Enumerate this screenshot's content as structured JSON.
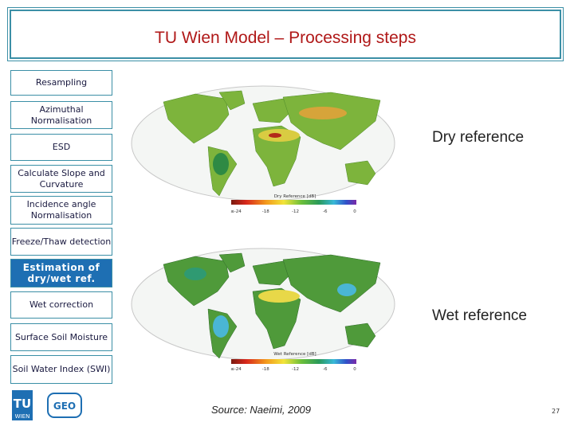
{
  "header": {
    "title": "TU Wien Model – Processing steps"
  },
  "steps": [
    "Resampling",
    "Azimuthal Normalisation",
    "ESD",
    "Calculate Slope and Curvature",
    "Incidence angle Normalisation",
    "Freeze/Thaw detection",
    "Estimation of dry/wet ref.",
    "Wet correction",
    "Surface Soil Moisture",
    "Soil Water Index (SWI)"
  ],
  "figures": [
    {
      "label": "Dry reference",
      "colorbar": {
        "title": "Dry Reference [dB]",
        "ticks": [
          "≤-24",
          "-18",
          "-12",
          "-6",
          "0"
        ]
      }
    },
    {
      "label": "Wet reference",
      "colorbar": {
        "title": "Wet Reference [dB]",
        "ticks": [
          "≤-24",
          "-18",
          "-12",
          "-6",
          "0"
        ]
      }
    }
  ],
  "footer": {
    "source": "Source: Naeimi, 2009",
    "page": "27",
    "logo": {
      "tu": "TU",
      "wien": "WIEN",
      "geo": "GEO"
    }
  }
}
